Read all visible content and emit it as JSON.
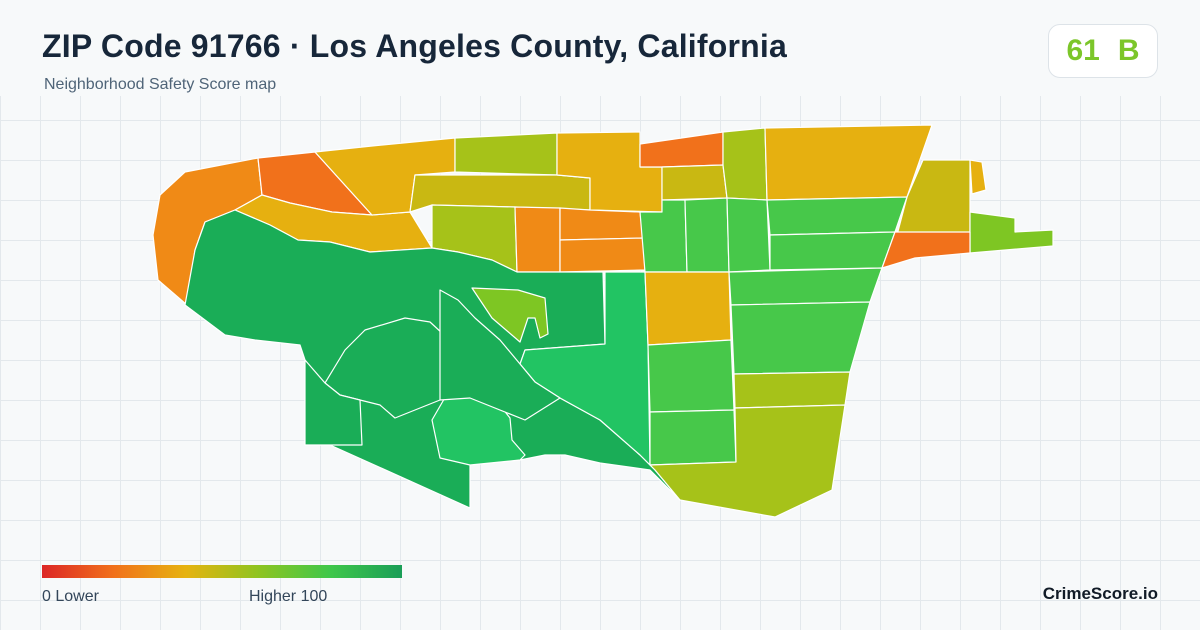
{
  "header": {
    "title": "ZIP Code 91766 · Los Angeles County, California",
    "subtitle": "Neighborhood Safety Score map"
  },
  "score": {
    "value": "61",
    "grade": "B",
    "color": "#7cc62a"
  },
  "legend": {
    "low_label": "0  Lower",
    "high_label": "Higher  100",
    "colors": [
      "#dc2626",
      "#f1711b",
      "#e6b310",
      "#8fc420",
      "#3fc74a",
      "#1a9e57"
    ]
  },
  "brand": "CrimeScore.io",
  "palette": {
    "red_orange": "#f1711b",
    "orange": "#f08a16",
    "amber": "#e6b010",
    "olive": "#c9b812",
    "yellow_green": "#a6c219",
    "light_green": "#7ec623",
    "green": "#47c84a",
    "bright_green": "#22c463",
    "dark_green": "#1aad57"
  },
  "map_tracts": [
    {
      "id": "t01",
      "fill": "orange"
    },
    {
      "id": "t02",
      "fill": "red_orange"
    },
    {
      "id": "t03",
      "fill": "amber"
    },
    {
      "id": "t04",
      "fill": "amber"
    },
    {
      "id": "t05",
      "fill": "yellow_green"
    },
    {
      "id": "t06",
      "fill": "olive"
    },
    {
      "id": "t07",
      "fill": "amber"
    },
    {
      "id": "t08",
      "fill": "red_orange"
    },
    {
      "id": "t09",
      "fill": "olive"
    },
    {
      "id": "t10",
      "fill": "yellow_green"
    },
    {
      "id": "t11",
      "fill": "amber"
    },
    {
      "id": "t12",
      "fill": "olive"
    },
    {
      "id": "t13",
      "fill": "light_green"
    },
    {
      "id": "t14",
      "fill": "amber"
    },
    {
      "id": "t15",
      "fill": "yellow_green"
    },
    {
      "id": "t16",
      "fill": "orange"
    },
    {
      "id": "t17",
      "fill": "orange"
    },
    {
      "id": "t18",
      "fill": "orange"
    },
    {
      "id": "t19",
      "fill": "green"
    },
    {
      "id": "t20",
      "fill": "green"
    },
    {
      "id": "t21",
      "fill": "green"
    },
    {
      "id": "t22",
      "fill": "green"
    },
    {
      "id": "t23",
      "fill": "green"
    },
    {
      "id": "t24",
      "fill": "red_orange"
    },
    {
      "id": "t25",
      "fill": "light_green"
    },
    {
      "id": "t26",
      "fill": "dark_green"
    },
    {
      "id": "t27",
      "fill": "dark_green"
    },
    {
      "id": "t28",
      "fill": "light_green"
    },
    {
      "id": "t29",
      "fill": "bright_green"
    },
    {
      "id": "t30",
      "fill": "amber"
    },
    {
      "id": "t31",
      "fill": "green"
    },
    {
      "id": "t32",
      "fill": "green"
    },
    {
      "id": "t33",
      "fill": "green"
    },
    {
      "id": "t34",
      "fill": "green"
    },
    {
      "id": "t35",
      "fill": "yellow_green"
    },
    {
      "id": "t36",
      "fill": "yellow_green"
    },
    {
      "id": "t37",
      "fill": "bright_green"
    },
    {
      "id": "t38",
      "fill": "dark_green"
    },
    {
      "id": "t39",
      "fill": "dark_green"
    }
  ]
}
